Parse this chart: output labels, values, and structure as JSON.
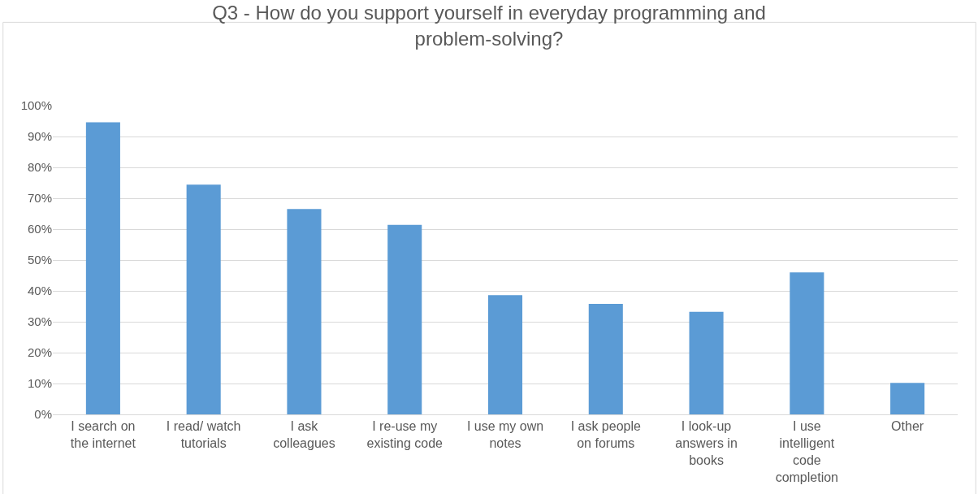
{
  "chart_data": {
    "type": "bar",
    "title": "Q3 - How do you support yourself in everyday programming and problem-solving?",
    "categories": [
      "I search on the internet",
      "I read/ watch tutorials",
      "I ask colleagues",
      "I re-use my existing code",
      "I use my own notes",
      "I ask people on forums",
      "I look-up answers in books",
      "I use intelligent code completion",
      "Other"
    ],
    "values": [
      94.6,
      74.4,
      66.5,
      61.4,
      38.6,
      35.8,
      33.2,
      46.0,
      10.2
    ],
    "color": "#5b9bd5",
    "ylim": [
      0,
      100
    ],
    "yticks": [
      {
        "value": 0,
        "label": "0%"
      },
      {
        "value": 10,
        "label": "10%"
      },
      {
        "value": 20,
        "label": "20%"
      },
      {
        "value": 30,
        "label": "30%"
      },
      {
        "value": 40,
        "label": "40%"
      },
      {
        "value": 50,
        "label": "50%"
      },
      {
        "value": 60,
        "label": "60%"
      },
      {
        "value": 70,
        "label": "70%"
      },
      {
        "value": 80,
        "label": "80%"
      },
      {
        "value": 90,
        "label": "90%"
      },
      {
        "value": 100,
        "label": "100%"
      }
    ],
    "grid": "y"
  }
}
